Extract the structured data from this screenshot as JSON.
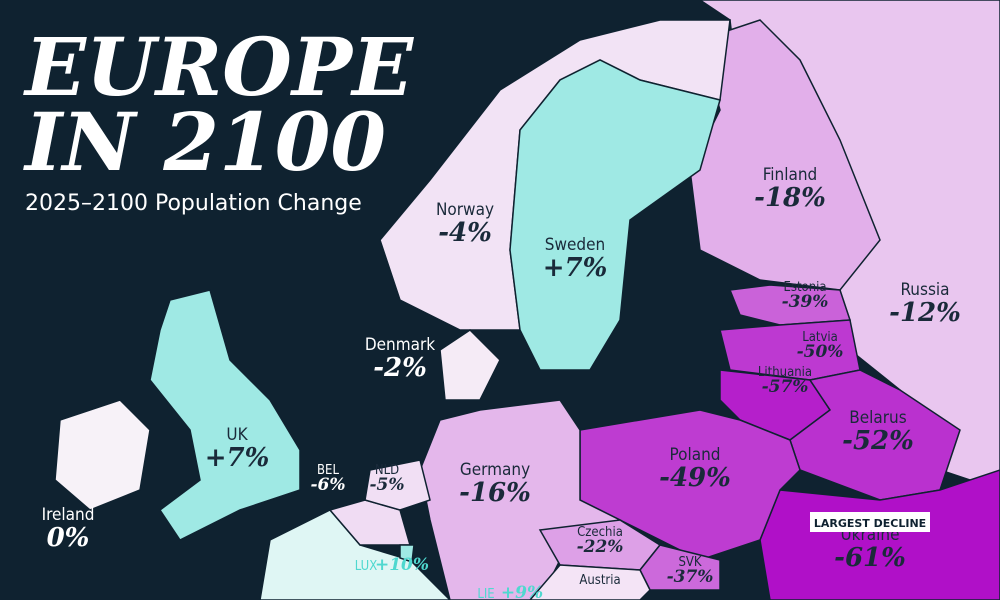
{
  "header": {
    "title_lines": [
      "EUROPE",
      "IN 2100"
    ],
    "subtitle": "2025–2100 Population Change"
  },
  "regions": [
    {
      "name": "Norway",
      "change": -4,
      "change_label": "-4%"
    },
    {
      "name": "Sweden",
      "change": 7,
      "change_label": "+7%"
    },
    {
      "name": "Finland",
      "change": -18,
      "change_label": "-18%"
    },
    {
      "name": "Russia",
      "change": -12,
      "change_label": "-12%"
    },
    {
      "name": "Estonia",
      "change": -39,
      "change_label": "-39%"
    },
    {
      "name": "Latvia",
      "change": -50,
      "change_label": "-50%"
    },
    {
      "name": "Lithuania",
      "change": -57,
      "change_label": "-57%"
    },
    {
      "name": "Belarus",
      "change": -52,
      "change_label": "-52%"
    },
    {
      "name": "Ukraine",
      "change": -61,
      "change_label": "-61%",
      "badge": "LARGEST DECLINE"
    },
    {
      "name": "Poland",
      "change": -49,
      "change_label": "-49%"
    },
    {
      "name": "Germany",
      "change": -16,
      "change_label": "-16%"
    },
    {
      "name": "Denmark",
      "change": -2,
      "change_label": "-2%"
    },
    {
      "name": "UK",
      "change": 7,
      "change_label": "+7%"
    },
    {
      "name": "Ireland",
      "change": 0,
      "change_label": "0%"
    },
    {
      "name": "BEL",
      "change": -6,
      "change_label": "-6%"
    },
    {
      "name": "NLD",
      "change": -5,
      "change_label": "-5%"
    },
    {
      "name": "LUX",
      "change": 10,
      "change_label": "+10%"
    },
    {
      "name": "Czechia",
      "change": -22,
      "change_label": "-22%"
    },
    {
      "name": "SVK",
      "change": -37,
      "change_label": "-37%"
    },
    {
      "name": "LIE",
      "change": 9,
      "change_label": "+9%"
    },
    {
      "name": "Austria"
    }
  ]
}
